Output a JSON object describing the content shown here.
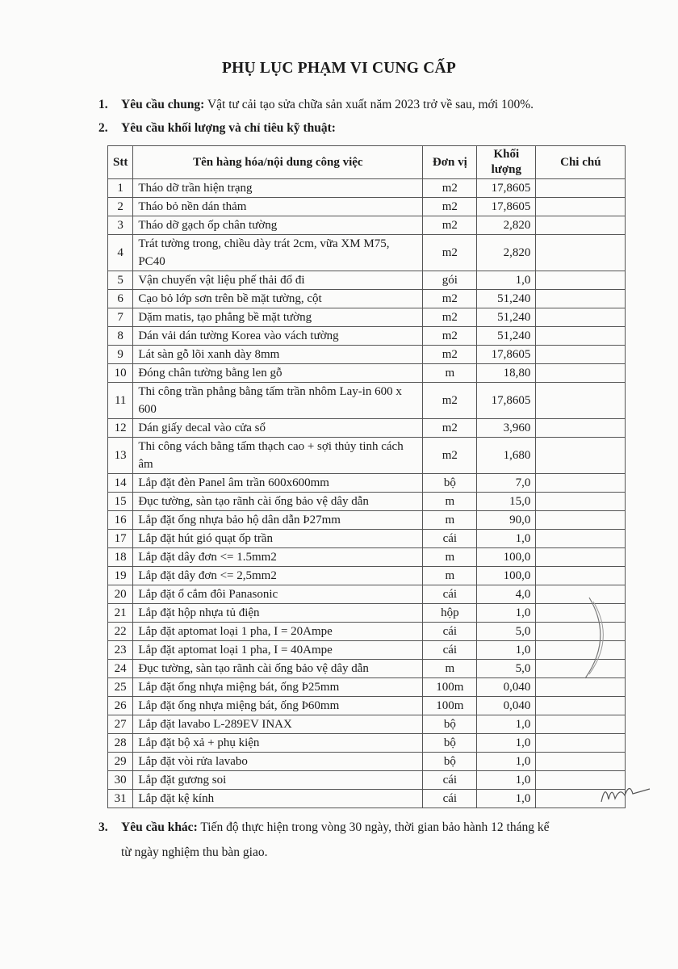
{
  "title": "PHỤ LỤC PHẠM VI CUNG CẤP",
  "section1": {
    "num": "1.",
    "label": "Yêu cầu chung:",
    "text": " Vật tư cải tạo sửa chữa sản xuất năm 2023 trở về sau, mới 100%."
  },
  "section2": {
    "num": "2.",
    "label": "Yêu cầu khối lượng và chỉ tiêu kỹ thuật:"
  },
  "table": {
    "headers": [
      "Stt",
      "Tên hàng hóa/nội dung công việc",
      "Đơn vị",
      "Khối lượng",
      "Chi chú"
    ],
    "rows": [
      [
        "1",
        "Tháo dỡ trần hiện trạng",
        "m2",
        "17,8605"
      ],
      [
        "2",
        "Tháo bỏ nền dán thảm",
        "m2",
        "17,8605"
      ],
      [
        "3",
        "Tháo dỡ gạch ốp chân tường",
        "m2",
        "2,820"
      ],
      [
        "4",
        "Trát tường trong, chiều dày trát 2cm, vữa XM M75, PC40",
        "m2",
        "2,820"
      ],
      [
        "5",
        "Vận chuyển vật liệu phế thải đổ đi",
        "gói",
        "1,0"
      ],
      [
        "6",
        "Cạo bỏ lớp sơn trên bề mặt tường, cột",
        "m2",
        "51,240"
      ],
      [
        "7",
        "Dặm matis, tạo phẳng bề mặt tường",
        "m2",
        "51,240"
      ],
      [
        "8",
        "Dán vải dán tường Korea vào vách tường",
        "m2",
        "51,240"
      ],
      [
        "9",
        "Lát sàn gỗ lõi xanh dày 8mm",
        "m2",
        "17,8605"
      ],
      [
        "10",
        "Đóng chân tường bằng len gỗ",
        "m",
        "18,80"
      ],
      [
        "11",
        "Thi công trần phẳng bằng tấm trần nhôm Lay-in 600 x 600",
        "m2",
        "17,8605"
      ],
      [
        "12",
        "Dán giấy decal vào cửa sổ",
        "m2",
        "3,960"
      ],
      [
        "13",
        "Thi công vách bằng tấm thạch cao + sợi thủy tinh cách âm",
        "m2",
        "1,680"
      ],
      [
        "14",
        "Lắp đặt đèn Panel âm trần 600x600mm",
        "bộ",
        "7,0"
      ],
      [
        "15",
        "Đục tường, sàn tạo rãnh cài ống bảo vệ dây dẫn",
        "m",
        "15,0"
      ],
      [
        "16",
        "Lắp đặt ống nhựa bảo hộ dân dẫn Þ27mm",
        "m",
        "90,0"
      ],
      [
        "17",
        "Lắp đặt hút gió quạt ốp trần",
        "cái",
        "1,0"
      ],
      [
        "18",
        "Lắp đặt dây đơn <= 1.5mm2",
        "m",
        "100,0"
      ],
      [
        "19",
        "Lắp đặt dây đơn <= 2,5mm2",
        "m",
        "100,0"
      ],
      [
        "20",
        "Lắp đặt ổ cắm đôi Panasonic",
        "cái",
        "4,0"
      ],
      [
        "21",
        "Lắp đặt hộp nhựa tủ điện",
        "hộp",
        "1,0"
      ],
      [
        "22",
        "Lắp đặt aptomat loại 1 pha, I = 20Ampe",
        "cái",
        "5,0"
      ],
      [
        "23",
        "Lắp đặt aptomat loại 1 pha, I = 40Ampe",
        "cái",
        "1,0"
      ],
      [
        "24",
        "Đục tường, sàn tạo rãnh cài ống bảo vệ dây dẫn",
        "m",
        "5,0"
      ],
      [
        "25",
        "Lắp đặt ống nhựa miệng bát, ống Þ25mm",
        "100m",
        "0,040"
      ],
      [
        "26",
        "Lắp đặt ống nhựa miệng bát, ống Þ60mm",
        "100m",
        "0,040"
      ],
      [
        "27",
        "Lắp đặt lavabo L-289EV INAX",
        "bộ",
        "1,0"
      ],
      [
        "28",
        "Lắp đặt bộ xả + phụ kiện",
        "bộ",
        "1,0"
      ],
      [
        "29",
        "Lắp đặt vòi rửa lavabo",
        "bộ",
        "1,0"
      ],
      [
        "30",
        "Lắp đặt gương soi",
        "cái",
        "1,0"
      ],
      [
        "31",
        "Lắp đặt kệ kính",
        "cái",
        "1,0"
      ]
    ]
  },
  "section3": {
    "num": "3.",
    "label": "Yêu cầu khác:",
    "text": " Tiến độ thực hiện trong vòng 30 ngày, thời gian bảo hành 12 tháng kể",
    "text2": "từ ngày nghiệm thu bàn giao."
  }
}
